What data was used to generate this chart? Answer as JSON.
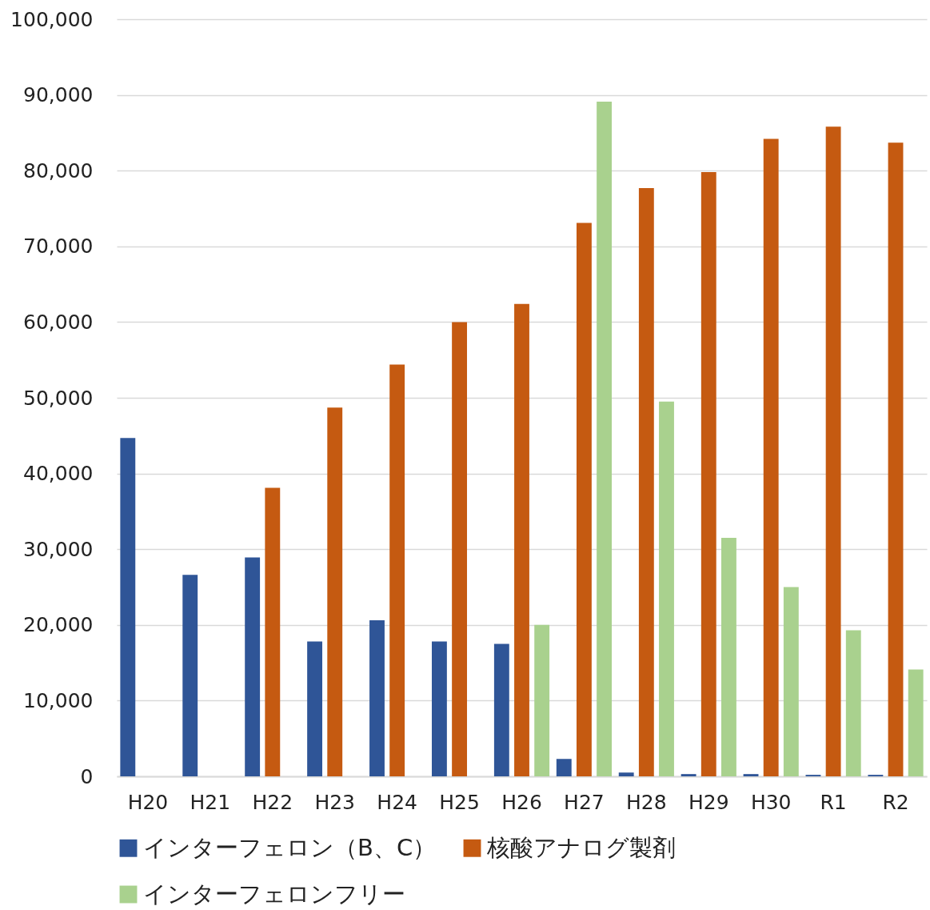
{
  "chart_data": {
    "type": "bar",
    "categories": [
      "H20",
      "H21",
      "H22",
      "H23",
      "H24",
      "H25",
      "H26",
      "H27",
      "H28",
      "H29",
      "H30",
      "R1",
      "R2"
    ],
    "series": [
      {
        "name": "インターフェロン（B、C）",
        "color": "#2f5597",
        "values": [
          44700,
          26600,
          28900,
          17800,
          20600,
          17800,
          17500,
          2300,
          500,
          300,
          300,
          200,
          200
        ]
      },
      {
        "name": "核酸アナログ製剤",
        "color": "#c55a11",
        "values": [
          null,
          null,
          38100,
          48700,
          54400,
          60000,
          62400,
          73100,
          77700,
          79800,
          84200,
          85800,
          83700
        ]
      },
      {
        "name": "インターフェロンフリー",
        "color": "#a9d18e",
        "values": [
          null,
          null,
          null,
          null,
          null,
          null,
          20000,
          89100,
          49500,
          31500,
          25000,
          19300,
          14100
        ]
      }
    ],
    "ylim": [
      0,
      100000
    ],
    "yticks": [
      {
        "value": 0,
        "label": "0"
      },
      {
        "value": 10000,
        "label": "10,000"
      },
      {
        "value": 20000,
        "label": "20,000"
      },
      {
        "value": 30000,
        "label": "30,000"
      },
      {
        "value": 40000,
        "label": "40,000"
      },
      {
        "value": 50000,
        "label": "50,000"
      },
      {
        "value": 60000,
        "label": "60,000"
      },
      {
        "value": 70000,
        "label": "70,000"
      },
      {
        "value": 80000,
        "label": "80,000"
      },
      {
        "value": 90000,
        "label": "90,000"
      },
      {
        "value": 100000,
        "label": "100,000"
      }
    ],
    "grid": "y",
    "legend": "bottom"
  }
}
